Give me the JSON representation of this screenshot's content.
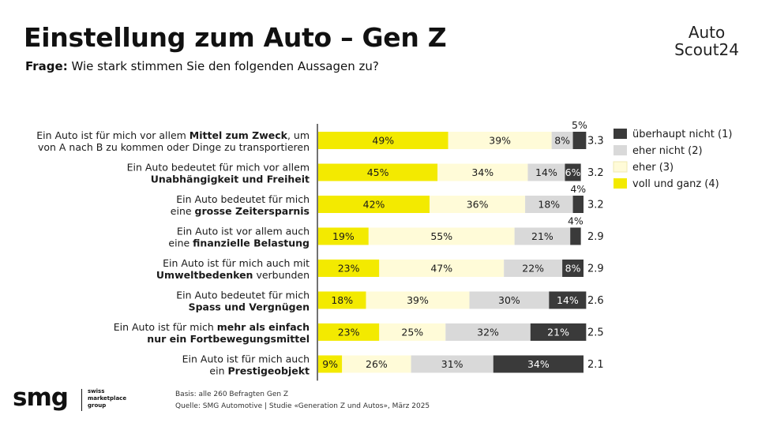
{
  "header": {
    "title": "Einstellung zum Auto – Gen Z",
    "question_label": "Frage:",
    "question_text": "Wie stark stimmen Sie den folgenden Aussagen zu?"
  },
  "brand": {
    "line1": "Auto",
    "line2": "Scout24"
  },
  "footer": {
    "basis": "Basis: alle 260 Befragten Gen Z",
    "source": "Quelle: SMG Automotive | Studie «Generation Z und Autos», März 2025"
  },
  "company_logo": {
    "wordmark": "smg",
    "lines": [
      "swiss",
      "marketplace",
      "group"
    ]
  },
  "colors": {
    "voll_und_ganz": "#f3ea00",
    "eher": "#fffbd8",
    "eher_nicht": "#d9d9d9",
    "ueberhaupt_nicht": "#3a3a3a",
    "axis": "#444444"
  },
  "chart_data": {
    "type": "bar",
    "orientation": "horizontal",
    "stacked": true,
    "categories": [
      [
        {
          "t": "Ein Auto ist für mich vor allem ",
          "b": false
        },
        {
          "t": "Mittel zum Zweck",
          "b": true
        },
        {
          "t": ", um",
          "b": false
        }
      ],
      [
        {
          "t": "Ein Auto bedeutet für mich vor allem",
          "b": false
        }
      ],
      [
        {
          "t": "Ein Auto bedeutet für mich",
          "b": false
        }
      ],
      [
        {
          "t": "Ein Auto ist vor allem auch",
          "b": false
        }
      ],
      [
        {
          "t": "Ein Auto ist für mich auch mit",
          "b": false
        }
      ],
      [
        {
          "t": "Ein Auto bedeutet für mich",
          "b": false
        }
      ],
      [
        {
          "t": "Ein Auto ist für mich ",
          "b": false
        },
        {
          "t": "mehr als einfach",
          "b": true
        }
      ],
      [
        {
          "t": "Ein Auto ist für mich auch",
          "b": false
        }
      ]
    ],
    "categories_line2": [
      [
        {
          "t": "von A nach B zu kommen oder Dinge zu transportieren",
          "b": false
        }
      ],
      [
        {
          "t": "Unabhängigkeit und Freiheit",
          "b": true
        }
      ],
      [
        {
          "t": "eine ",
          "b": false
        },
        {
          "t": "grosse Zeitersparnis",
          "b": true
        }
      ],
      [
        {
          "t": "eine ",
          "b": false
        },
        {
          "t": "finanzielle Belastung",
          "b": true
        }
      ],
      [
        {
          "t": "Umweltbedenken",
          "b": true
        },
        {
          "t": " verbunden",
          "b": false
        }
      ],
      [
        {
          "t": "Spass und Vergnügen",
          "b": true
        }
      ],
      [
        {
          "t": "nur ein Fortbewegungsmittel",
          "b": true
        }
      ],
      [
        {
          "t": "ein ",
          "b": false
        },
        {
          "t": "Prestigeobjekt",
          "b": true
        }
      ]
    ],
    "series": [
      {
        "name": "voll und ganz (4)",
        "values": [
          49,
          45,
          42,
          19,
          23,
          18,
          23,
          9
        ],
        "color": "#f3ea00"
      },
      {
        "name": "eher (3)",
        "values": [
          39,
          34,
          36,
          55,
          47,
          39,
          25,
          26
        ],
        "color": "#fffbd8"
      },
      {
        "name": "eher nicht (2)",
        "values": [
          8,
          14,
          18,
          21,
          22,
          30,
          32,
          31
        ],
        "color": "#d9d9d9"
      },
      {
        "name": "überhaupt nicht (1)",
        "values": [
          5,
          6,
          4,
          4,
          8,
          14,
          21,
          34
        ],
        "color": "#3a3a3a"
      }
    ],
    "means": [
      "3.3",
      "3.2",
      "3.2",
      "2.9",
      "2.9",
      "2.6",
      "2.5",
      "2.1"
    ],
    "xlim": [
      0,
      100
    ],
    "value_suffix": "%",
    "legend": {
      "placement": "right",
      "order": [
        "überhaupt nicht (1)",
        "eher nicht (2)",
        "eher (3)",
        "voll und ganz (4)"
      ]
    },
    "grid": false
  }
}
